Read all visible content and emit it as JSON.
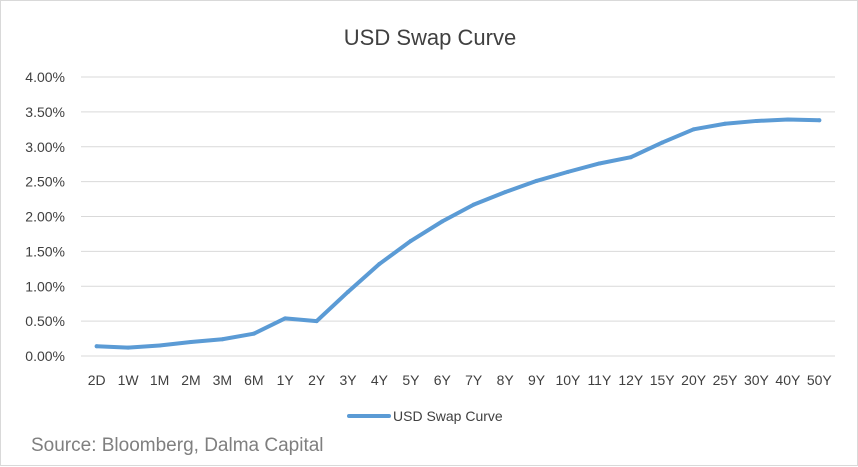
{
  "chart_data": {
    "type": "line",
    "title": "USD Swap Curve",
    "categories": [
      "2D",
      "1W",
      "1M",
      "2M",
      "3M",
      "6M",
      "1Y",
      "2Y",
      "3Y",
      "4Y",
      "5Y",
      "6Y",
      "7Y",
      "8Y",
      "9Y",
      "10Y",
      "11Y",
      "12Y",
      "15Y",
      "20Y",
      "25Y",
      "30Y",
      "40Y",
      "50Y"
    ],
    "series": [
      {
        "name": "USD Swap Curve",
        "color": "#5b9bd5",
        "values": [
          0.14,
          0.12,
          0.15,
          0.2,
          0.24,
          0.32,
          0.54,
          0.5,
          0.92,
          1.32,
          1.65,
          1.93,
          2.17,
          2.35,
          2.51,
          2.64,
          2.76,
          2.85,
          3.06,
          3.25,
          3.33,
          3.37,
          3.39,
          3.38
        ]
      }
    ],
    "ylim": [
      0,
      4
    ],
    "yticks": [
      "0.00%",
      "0.50%",
      "1.00%",
      "1.50%",
      "2.00%",
      "2.50%",
      "3.00%",
      "3.50%",
      "4.00%"
    ],
    "ytick_values": [
      0,
      0.5,
      1,
      1.5,
      2,
      2.5,
      3,
      3.5,
      4
    ],
    "grid": true,
    "legend": "bottom"
  },
  "source": "Source: Bloomberg, Dalma Capital"
}
